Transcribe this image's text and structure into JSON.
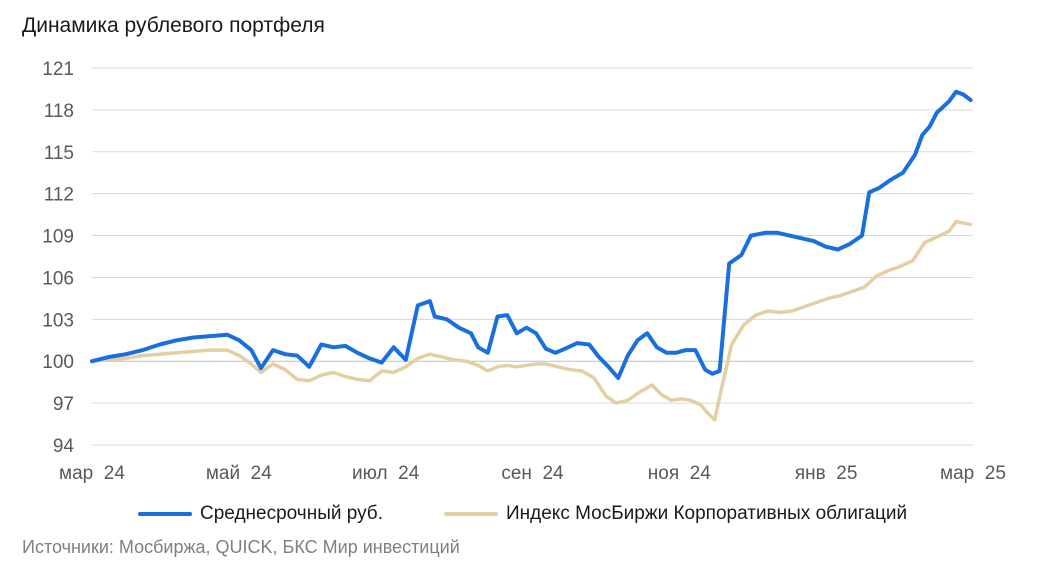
{
  "chart_data": {
    "type": "line",
    "title": "Динамика рублевого портфеля",
    "xlabel": "",
    "ylabel": "",
    "ylim": [
      94,
      121
    ],
    "yticks": [
      94,
      97,
      100,
      103,
      106,
      109,
      112,
      115,
      118,
      121
    ],
    "grid": true,
    "legend_position": "bottom",
    "x_ticks": [
      "мар 24",
      "май 24",
      "июл 24",
      "сен 24",
      "ноя 24",
      "янв 25",
      "мар 25"
    ],
    "x_range": [
      "2024-03-01",
      "2025-03-01"
    ],
    "series": [
      {
        "name": "Среднесрочный руб.",
        "color": "#1a6fde",
        "points": [
          [
            "2024-03-01",
            100.0
          ],
          [
            "2024-03-08",
            100.3
          ],
          [
            "2024-03-15",
            100.5
          ],
          [
            "2024-03-22",
            100.8
          ],
          [
            "2024-03-29",
            101.2
          ],
          [
            "2024-04-05",
            101.5
          ],
          [
            "2024-04-12",
            101.7
          ],
          [
            "2024-04-19",
            101.8
          ],
          [
            "2024-04-26",
            101.9
          ],
          [
            "2024-05-01",
            101.5
          ],
          [
            "2024-05-06",
            100.8
          ],
          [
            "2024-05-10",
            99.5
          ],
          [
            "2024-05-15",
            100.8
          ],
          [
            "2024-05-20",
            100.5
          ],
          [
            "2024-05-25",
            100.4
          ],
          [
            "2024-05-30",
            99.6
          ],
          [
            "2024-06-04",
            101.2
          ],
          [
            "2024-06-09",
            101.0
          ],
          [
            "2024-06-14",
            101.1
          ],
          [
            "2024-06-19",
            100.6
          ],
          [
            "2024-06-24",
            100.2
          ],
          [
            "2024-06-29",
            99.9
          ],
          [
            "2024-07-04",
            101.0
          ],
          [
            "2024-07-09",
            100.1
          ],
          [
            "2024-07-14",
            104.0
          ],
          [
            "2024-07-19",
            104.3
          ],
          [
            "2024-07-21",
            103.2
          ],
          [
            "2024-07-26",
            103.0
          ],
          [
            "2024-07-31",
            102.4
          ],
          [
            "2024-08-05",
            102.0
          ],
          [
            "2024-08-08",
            101.0
          ],
          [
            "2024-08-12",
            100.6
          ],
          [
            "2024-08-16",
            103.2
          ],
          [
            "2024-08-20",
            103.3
          ],
          [
            "2024-08-24",
            102.0
          ],
          [
            "2024-08-28",
            102.4
          ],
          [
            "2024-09-01",
            102.0
          ],
          [
            "2024-09-05",
            100.9
          ],
          [
            "2024-09-09",
            100.6
          ],
          [
            "2024-09-13",
            100.9
          ],
          [
            "2024-09-18",
            101.3
          ],
          [
            "2024-09-23",
            101.2
          ],
          [
            "2024-09-27",
            100.3
          ],
          [
            "2024-10-01",
            99.6
          ],
          [
            "2024-10-05",
            98.8
          ],
          [
            "2024-10-09",
            100.4
          ],
          [
            "2024-10-13",
            101.5
          ],
          [
            "2024-10-17",
            102.0
          ],
          [
            "2024-10-21",
            101.0
          ],
          [
            "2024-10-25",
            100.6
          ],
          [
            "2024-10-29",
            100.6
          ],
          [
            "2024-11-02",
            100.8
          ],
          [
            "2024-11-06",
            100.8
          ],
          [
            "2024-11-10",
            99.4
          ],
          [
            "2024-11-13",
            99.1
          ],
          [
            "2024-11-16",
            99.3
          ],
          [
            "2024-11-20",
            107.0
          ],
          [
            "2024-11-25",
            107.6
          ],
          [
            "2024-11-29",
            109.0
          ],
          [
            "2024-12-05",
            109.2
          ],
          [
            "2024-12-10",
            109.2
          ],
          [
            "2024-12-15",
            109.0
          ],
          [
            "2024-12-20",
            108.8
          ],
          [
            "2024-12-25",
            108.6
          ],
          [
            "2024-12-30",
            108.2
          ],
          [
            "2025-01-04",
            108.0
          ],
          [
            "2025-01-09",
            108.4
          ],
          [
            "2025-01-14",
            109.0
          ],
          [
            "2025-01-17",
            112.1
          ],
          [
            "2025-01-21",
            112.4
          ],
          [
            "2025-01-26",
            113.0
          ],
          [
            "2025-01-31",
            113.5
          ],
          [
            "2025-02-05",
            114.8
          ],
          [
            "2025-02-08",
            116.2
          ],
          [
            "2025-02-11",
            116.8
          ],
          [
            "2025-02-14",
            117.8
          ],
          [
            "2025-02-19",
            118.6
          ],
          [
            "2025-02-22",
            119.3
          ],
          [
            "2025-02-25",
            119.1
          ],
          [
            "2025-02-28",
            118.7
          ]
        ]
      },
      {
        "name": "Индекс МосБиржи Корпоративных облигаций",
        "color": "#e4cfa3",
        "points": [
          [
            "2024-03-01",
            100.0
          ],
          [
            "2024-03-08",
            100.1
          ],
          [
            "2024-03-15",
            100.2
          ],
          [
            "2024-03-22",
            100.4
          ],
          [
            "2024-03-29",
            100.5
          ],
          [
            "2024-04-05",
            100.6
          ],
          [
            "2024-04-12",
            100.7
          ],
          [
            "2024-04-19",
            100.8
          ],
          [
            "2024-04-26",
            100.8
          ],
          [
            "2024-05-01",
            100.4
          ],
          [
            "2024-05-06",
            99.8
          ],
          [
            "2024-05-10",
            99.2
          ],
          [
            "2024-05-15",
            99.8
          ],
          [
            "2024-05-20",
            99.4
          ],
          [
            "2024-05-25",
            98.7
          ],
          [
            "2024-05-30",
            98.6
          ],
          [
            "2024-06-04",
            99.0
          ],
          [
            "2024-06-09",
            99.2
          ],
          [
            "2024-06-14",
            98.9
          ],
          [
            "2024-06-19",
            98.7
          ],
          [
            "2024-06-24",
            98.6
          ],
          [
            "2024-06-29",
            99.3
          ],
          [
            "2024-07-04",
            99.2
          ],
          [
            "2024-07-09",
            99.6
          ],
          [
            "2024-07-14",
            100.2
          ],
          [
            "2024-07-19",
            100.5
          ],
          [
            "2024-07-24",
            100.3
          ],
          [
            "2024-07-29",
            100.1
          ],
          [
            "2024-08-03",
            100.0
          ],
          [
            "2024-08-08",
            99.7
          ],
          [
            "2024-08-12",
            99.3
          ],
          [
            "2024-08-16",
            99.6
          ],
          [
            "2024-08-20",
            99.7
          ],
          [
            "2024-08-24",
            99.6
          ],
          [
            "2024-08-28",
            99.7
          ],
          [
            "2024-09-01",
            99.8
          ],
          [
            "2024-09-05",
            99.8
          ],
          [
            "2024-09-10",
            99.6
          ],
          [
            "2024-09-15",
            99.4
          ],
          [
            "2024-09-20",
            99.3
          ],
          [
            "2024-09-25",
            98.8
          ],
          [
            "2024-09-30",
            97.5
          ],
          [
            "2024-10-04",
            97.0
          ],
          [
            "2024-10-09",
            97.2
          ],
          [
            "2024-10-14",
            97.8
          ],
          [
            "2024-10-19",
            98.3
          ],
          [
            "2024-10-23",
            97.6
          ],
          [
            "2024-10-27",
            97.2
          ],
          [
            "2024-10-31",
            97.3
          ],
          [
            "2024-11-04",
            97.2
          ],
          [
            "2024-11-08",
            96.9
          ],
          [
            "2024-11-11",
            96.3
          ],
          [
            "2024-11-14",
            95.8
          ],
          [
            "2024-11-17",
            98.2
          ],
          [
            "2024-11-21",
            101.2
          ],
          [
            "2024-11-26",
            102.6
          ],
          [
            "2024-12-01",
            103.3
          ],
          [
            "2024-12-06",
            103.6
          ],
          [
            "2024-12-11",
            103.5
          ],
          [
            "2024-12-16",
            103.6
          ],
          [
            "2024-12-21",
            103.9
          ],
          [
            "2024-12-26",
            104.2
          ],
          [
            "2024-12-31",
            104.5
          ],
          [
            "2025-01-05",
            104.7
          ],
          [
            "2025-01-10",
            105.0
          ],
          [
            "2025-01-15",
            105.3
          ],
          [
            "2025-01-20",
            106.1
          ],
          [
            "2025-01-25",
            106.5
          ],
          [
            "2025-01-30",
            106.8
          ],
          [
            "2025-02-04",
            107.2
          ],
          [
            "2025-02-09",
            108.5
          ],
          [
            "2025-02-14",
            108.9
          ],
          [
            "2025-02-19",
            109.3
          ],
          [
            "2025-02-22",
            110.0
          ],
          [
            "2025-02-25",
            109.9
          ],
          [
            "2025-02-28",
            109.8
          ]
        ]
      }
    ],
    "source_note": "Источники: Мосбиржа, QUICK, БКС Мир инвестиций"
  }
}
